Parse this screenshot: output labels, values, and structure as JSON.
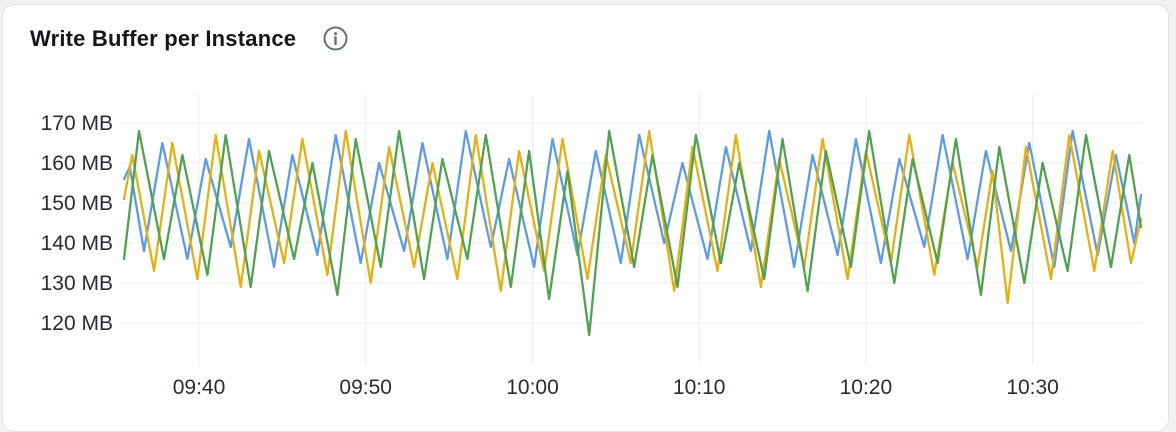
{
  "card": {
    "title": "Write Buffer per Instance"
  },
  "colors": {
    "page_bg": "#EFF1F2",
    "card_border": "#E1E4E7",
    "title_text": "#14171A",
    "axis_text": "#272C33",
    "grid": "#ECECEC",
    "info_icon": "#666E78"
  },
  "chart_data": {
    "type": "line",
    "title": "Write Buffer per Instance",
    "unit": "MB",
    "grid": true,
    "legend": false,
    "x_axis": {
      "tick_labels": [
        "09:40",
        "09:50",
        "10:00",
        "10:10",
        "10:20",
        "10:30"
      ],
      "tick_minutes": [
        4.5,
        14.5,
        24.5,
        34.5,
        44.5,
        54.5
      ],
      "domain_minutes": [
        0,
        61
      ]
    },
    "y_axis": {
      "tick_labels": [
        "170 MB",
        "160 MB",
        "150 MB",
        "140 MB",
        "130 MB",
        "120 MB"
      ],
      "tick_values": [
        170,
        160,
        150,
        140,
        130,
        120
      ],
      "range": [
        113,
        172
      ]
    },
    "series": [
      {
        "name": "series-blue",
        "color": "#5B9BEA",
        "points": [
          [
            0,
            156
          ],
          [
            0.35,
            159
          ],
          [
            1.2,
            138
          ],
          [
            2.3,
            165
          ],
          [
            3.8,
            136
          ],
          [
            4.9,
            161
          ],
          [
            6.4,
            139
          ],
          [
            7.5,
            166
          ],
          [
            9,
            134
          ],
          [
            10.1,
            162
          ],
          [
            11.6,
            137
          ],
          [
            12.7,
            167
          ],
          [
            14.2,
            135
          ],
          [
            15.3,
            160
          ],
          [
            16.8,
            138
          ],
          [
            17.9,
            165
          ],
          [
            19.4,
            136
          ],
          [
            20.5,
            168
          ],
          [
            22,
            139
          ],
          [
            23.1,
            161
          ],
          [
            24.6,
            134
          ],
          [
            25.7,
            166
          ],
          [
            27.2,
            137
          ],
          [
            28.3,
            163
          ],
          [
            29.8,
            135
          ],
          [
            30.9,
            167
          ],
          [
            32.4,
            140
          ],
          [
            33.5,
            160
          ],
          [
            35,
            136
          ],
          [
            36.1,
            164
          ],
          [
            37.6,
            138
          ],
          [
            38.7,
            168
          ],
          [
            40.2,
            134
          ],
          [
            41.3,
            162
          ],
          [
            42.8,
            137
          ],
          [
            43.9,
            166
          ],
          [
            45.4,
            135
          ],
          [
            46.5,
            161
          ],
          [
            48,
            139
          ],
          [
            49.1,
            167
          ],
          [
            50.6,
            136
          ],
          [
            51.7,
            163
          ],
          [
            53.2,
            138
          ],
          [
            54.3,
            165
          ],
          [
            55.8,
            134
          ],
          [
            56.9,
            168
          ],
          [
            58.4,
            137
          ],
          [
            59.5,
            162
          ],
          [
            60.6,
            140
          ],
          [
            61,
            152
          ]
        ]
      },
      {
        "name": "series-yellow",
        "color": "#E7B00E",
        "points": [
          [
            0,
            151
          ],
          [
            0.5,
            162
          ],
          [
            1.8,
            133
          ],
          [
            2.9,
            165
          ],
          [
            4.4,
            131
          ],
          [
            5.5,
            167
          ],
          [
            7,
            129
          ],
          [
            8.1,
            163
          ],
          [
            9.6,
            135
          ],
          [
            10.7,
            166
          ],
          [
            12.2,
            132
          ],
          [
            13.3,
            168
          ],
          [
            14.8,
            130
          ],
          [
            15.9,
            164
          ],
          [
            17.4,
            134
          ],
          [
            18.5,
            160
          ],
          [
            20,
            131
          ],
          [
            21.1,
            167
          ],
          [
            22.6,
            128
          ],
          [
            23.7,
            163
          ],
          [
            25.2,
            133
          ],
          [
            26.3,
            166
          ],
          [
            27.8,
            131
          ],
          [
            28.9,
            162
          ],
          [
            30.4,
            135
          ],
          [
            31.5,
            168
          ],
          [
            33,
            128
          ],
          [
            34.1,
            164
          ],
          [
            35.6,
            133
          ],
          [
            36.7,
            167
          ],
          [
            38.2,
            129
          ],
          [
            39.3,
            161
          ],
          [
            40.8,
            134
          ],
          [
            41.9,
            166
          ],
          [
            43.4,
            131
          ],
          [
            44.5,
            163
          ],
          [
            46,
            135
          ],
          [
            47.1,
            167
          ],
          [
            48.6,
            132
          ],
          [
            49.7,
            160
          ],
          [
            51.2,
            134
          ],
          [
            52.1,
            158
          ],
          [
            53,
            125
          ],
          [
            54.1,
            164
          ],
          [
            55.6,
            131
          ],
          [
            56.7,
            167
          ],
          [
            58.2,
            133
          ],
          [
            59.3,
            163
          ],
          [
            60.4,
            135
          ],
          [
            61,
            146
          ]
        ]
      },
      {
        "name": "series-green",
        "color": "#4FA24F",
        "points": [
          [
            0,
            136
          ],
          [
            0.9,
            168
          ],
          [
            2.4,
            136
          ],
          [
            3.5,
            162
          ],
          [
            5,
            132
          ],
          [
            6.1,
            167
          ],
          [
            7.6,
            129
          ],
          [
            8.7,
            163
          ],
          [
            10.2,
            136
          ],
          [
            11.3,
            160
          ],
          [
            12.8,
            127
          ],
          [
            13.9,
            166
          ],
          [
            15.4,
            134
          ],
          [
            16.5,
            168
          ],
          [
            18,
            131
          ],
          [
            19.1,
            161
          ],
          [
            20.6,
            136
          ],
          [
            21.7,
            167
          ],
          [
            23.2,
            129
          ],
          [
            24.3,
            163
          ],
          [
            25.5,
            126
          ],
          [
            26.6,
            158
          ],
          [
            27.9,
            117
          ],
          [
            29.1,
            168
          ],
          [
            30.6,
            134
          ],
          [
            31.7,
            162
          ],
          [
            33.2,
            129
          ],
          [
            34.3,
            167
          ],
          [
            35.8,
            135
          ],
          [
            36.9,
            160
          ],
          [
            38.4,
            131
          ],
          [
            39.5,
            166
          ],
          [
            41,
            128
          ],
          [
            42.1,
            163
          ],
          [
            43.6,
            134
          ],
          [
            44.7,
            168
          ],
          [
            46.2,
            130
          ],
          [
            47.3,
            161
          ],
          [
            48.8,
            135
          ],
          [
            49.9,
            166
          ],
          [
            51.4,
            127
          ],
          [
            52.5,
            164
          ],
          [
            54,
            130
          ],
          [
            55.1,
            160
          ],
          [
            56.6,
            133
          ],
          [
            57.7,
            167
          ],
          [
            59.2,
            134
          ],
          [
            60.3,
            162
          ],
          [
            61,
            144
          ]
        ]
      }
    ]
  }
}
